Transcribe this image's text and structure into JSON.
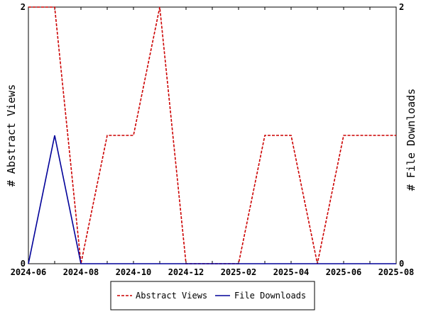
{
  "chart_data": {
    "type": "line",
    "title": "",
    "xlabel": "",
    "ylabel": "# Abstract Views",
    "y2label": "# File Downloads",
    "x": [
      "2024-06",
      "2024-07",
      "2024-08",
      "2024-09",
      "2024-10",
      "2024-11",
      "2024-12",
      "2025-01",
      "2025-02",
      "2025-03",
      "2025-04",
      "2025-05",
      "2025-06",
      "2025-07",
      "2025-08"
    ],
    "x_tick_labels": [
      "2024-06",
      "2024-08",
      "2024-10",
      "2024-12",
      "2025-02",
      "2025-04",
      "2025-06",
      "2025-08"
    ],
    "ylim": [
      0,
      2
    ],
    "y_ticks": [
      "0",
      "2"
    ],
    "y2lim": [
      0,
      2
    ],
    "y2_ticks": [
      "0",
      "2"
    ],
    "grid": false,
    "legend_position": "bottom-center",
    "series": [
      {
        "name": "Abstract Views",
        "axis": "left",
        "color": "#cc0000",
        "style": "dashed",
        "values": [
          2,
          2,
          0,
          1,
          1,
          2,
          0,
          0,
          0,
          1,
          1,
          0,
          1,
          1,
          1
        ]
      },
      {
        "name": "File Downloads",
        "axis": "right",
        "color": "#000099",
        "style": "solid",
        "values": [
          0,
          1,
          0,
          0,
          0,
          0,
          0,
          0,
          0,
          0,
          0,
          0,
          0,
          0,
          0
        ]
      }
    ]
  }
}
